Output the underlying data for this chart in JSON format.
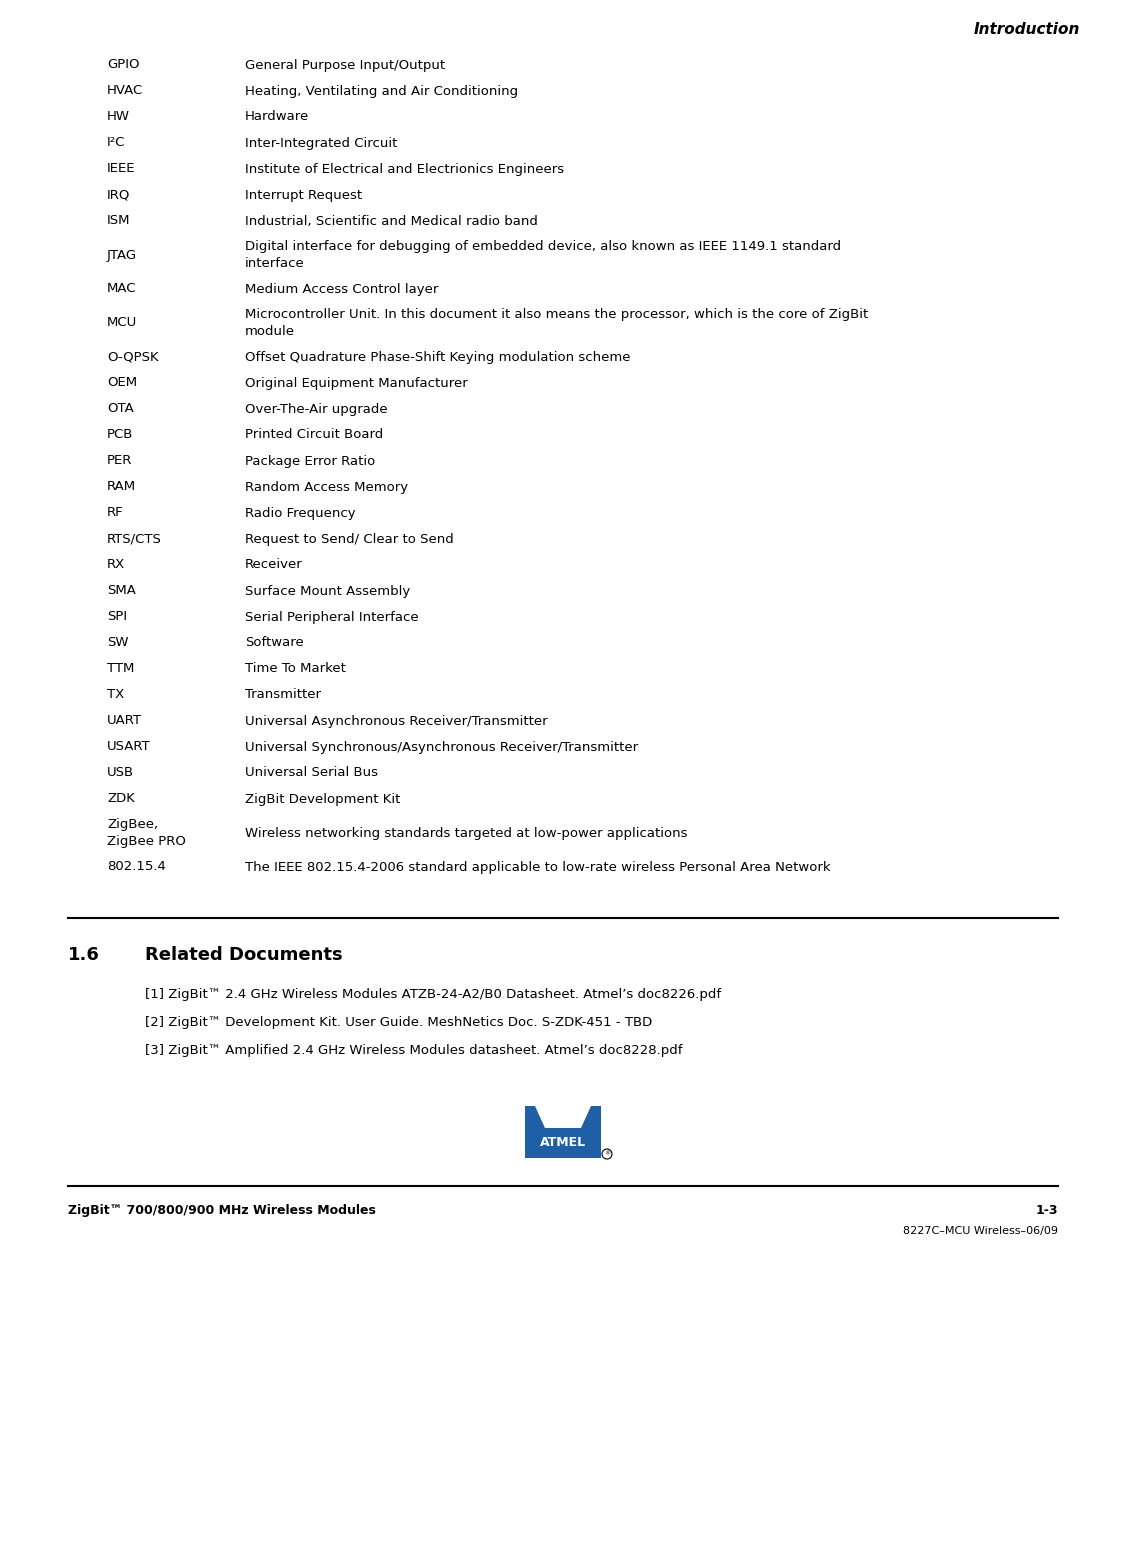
{
  "title_right": "Introduction",
  "footer_left": "ZigBit™ 700/800/900 MHz Wireless Modules",
  "footer_right": "1-3",
  "footer_sub": "8227C–MCU Wireless–06/09",
  "section_num": "1.6",
  "section_title": "Related Documents",
  "references": [
    "[1] ZigBit™ 2.4 GHz Wireless Modules ATZB-24-A2/B0 Datasheet. Atmel’s doc8226.pdf",
    "[2] ZigBit™ Development Kit. User Guide. MeshNetics Doc. S-ZDK-451 - TBD",
    "[3] ZigBit™ Amplified 2.4 GHz Wireless Modules datasheet. Atmel’s doc8228.pdf"
  ],
  "table_rows": [
    {
      "term": "GPIO",
      "definition": "General Purpose Input/Output"
    },
    {
      "term": "HVAC",
      "definition": "Heating, Ventilating and Air Conditioning"
    },
    {
      "term": "HW",
      "definition": "Hardware"
    },
    {
      "term": "I²C",
      "definition": "Inter-Integrated Circuit"
    },
    {
      "term": "IEEE",
      "definition": "Institute of Electrical and Electrionics Engineers"
    },
    {
      "term": "IRQ",
      "definition": "Interrupt Request"
    },
    {
      "term": "ISM",
      "definition": "Industrial, Scientific and Medical radio band"
    },
    {
      "term": "JTAG",
      "definition": "Digital interface for debugging of embedded device, also known as IEEE 1149.1 standard\ninterface"
    },
    {
      "term": "MAC",
      "definition": "Medium Access Control layer"
    },
    {
      "term": "MCU",
      "definition": "Microcontroller Unit. In this document it also means the processor, which is the core of ZigBit\nmodule"
    },
    {
      "term": "O-QPSK",
      "definition": "Offset Quadrature Phase-Shift Keying modulation scheme"
    },
    {
      "term": "OEM",
      "definition": "Original Equipment Manufacturer"
    },
    {
      "term": "OTA",
      "definition": "Over-The-Air upgrade"
    },
    {
      "term": "PCB",
      "definition": "Printed Circuit Board"
    },
    {
      "term": "PER",
      "definition": "Package Error Ratio"
    },
    {
      "term": "RAM",
      "definition": "Random Access Memory"
    },
    {
      "term": "RF",
      "definition": "Radio Frequency"
    },
    {
      "term": "RTS/CTS",
      "definition": "Request to Send/ Clear to Send"
    },
    {
      "term": "RX",
      "definition": "Receiver"
    },
    {
      "term": "SMA",
      "definition": "Surface Mount Assembly"
    },
    {
      "term": "SPI",
      "definition": "Serial Peripheral Interface"
    },
    {
      "term": "SW",
      "definition": "Software"
    },
    {
      "term": "TTM",
      "definition": "Time To Market"
    },
    {
      "term": "TX",
      "definition": "Transmitter"
    },
    {
      "term": "UART",
      "definition": "Universal Asynchronous Receiver/Transmitter"
    },
    {
      "term": "USART",
      "definition": "Universal Synchronous/Asynchronous Receiver/Transmitter"
    },
    {
      "term": "USB",
      "definition": "Universal Serial Bus"
    },
    {
      "term": "ZDK",
      "definition": "ZigBit Development Kit"
    },
    {
      "term": "ZigBee,\nZigBee PRO",
      "definition": "Wireless networking standards targeted at low-power applications"
    },
    {
      "term": "802.15.4",
      "definition": "The IEEE 802.15.4-2006 standard applicable to low-rate wireless Personal Area Network"
    }
  ],
  "bg_color": "#ffffff",
  "text_color": "#000000",
  "atmel_blue": "#1f5fa6"
}
